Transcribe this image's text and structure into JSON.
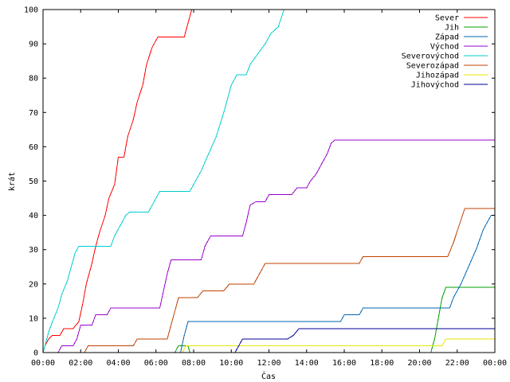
{
  "chart_data": {
    "type": "line",
    "xlabel": "Čas",
    "ylabel": "krát",
    "xlim": [
      0,
      24
    ],
    "ylim": [
      0,
      100
    ],
    "x_ticks": [
      {
        "v": 0,
        "label": "00:00"
      },
      {
        "v": 2,
        "label": "02:00"
      },
      {
        "v": 4,
        "label": "04:00"
      },
      {
        "v": 6,
        "label": "06:00"
      },
      {
        "v": 8,
        "label": "08:00"
      },
      {
        "v": 10,
        "label": "10:00"
      },
      {
        "v": 12,
        "label": "12:00"
      },
      {
        "v": 14,
        "label": "14:00"
      },
      {
        "v": 16,
        "label": "16:00"
      },
      {
        "v": 18,
        "label": "18:00"
      },
      {
        "v": 20,
        "label": "20:00"
      },
      {
        "v": 22,
        "label": "22:00"
      },
      {
        "v": 24,
        "label": "00:00"
      }
    ],
    "y_ticks": [
      0,
      10,
      20,
      30,
      40,
      50,
      60,
      70,
      80,
      90,
      100
    ],
    "grid": false,
    "legend_position": "top-right",
    "series": [
      {
        "name": "Sever",
        "color": "#ff0000",
        "points": [
          [
            0,
            0
          ],
          [
            0.1,
            2
          ],
          [
            0.3,
            4
          ],
          [
            0.5,
            5
          ],
          [
            0.9,
            5
          ],
          [
            1.1,
            7
          ],
          [
            1.6,
            7
          ],
          [
            1.9,
            9
          ],
          [
            2.1,
            14
          ],
          [
            2.3,
            20
          ],
          [
            2.6,
            26
          ],
          [
            2.8,
            31
          ],
          [
            3.0,
            35
          ],
          [
            3.3,
            40
          ],
          [
            3.5,
            45
          ],
          [
            3.8,
            49
          ],
          [
            4.0,
            57
          ],
          [
            4.3,
            57
          ],
          [
            4.5,
            63
          ],
          [
            4.8,
            68
          ],
          [
            5.0,
            73
          ],
          [
            5.3,
            78
          ],
          [
            5.5,
            84
          ],
          [
            5.8,
            89
          ],
          [
            6.1,
            92
          ],
          [
            7.5,
            92
          ],
          [
            7.7,
            96
          ],
          [
            7.9,
            100
          ]
        ]
      },
      {
        "name": "Jih",
        "color": "#00a000",
        "points": [
          [
            7.0,
            0
          ],
          [
            7.1,
            1
          ],
          [
            7.2,
            2
          ],
          [
            7.7,
            2
          ],
          [
            7.8,
            0
          ],
          [
            20.6,
            0
          ],
          [
            20.8,
            4
          ],
          [
            21.0,
            10
          ],
          [
            21.2,
            16
          ],
          [
            21.4,
            19
          ],
          [
            24,
            19
          ]
        ]
      },
      {
        "name": "Západ",
        "color": "#0066b3",
        "points": [
          [
            7.3,
            0
          ],
          [
            7.5,
            5
          ],
          [
            7.7,
            9
          ],
          [
            15.8,
            9
          ],
          [
            16.0,
            11
          ],
          [
            16.8,
            11
          ],
          [
            17.0,
            13
          ],
          [
            21.6,
            13
          ],
          [
            21.8,
            16
          ],
          [
            22.2,
            20
          ],
          [
            22.6,
            25
          ],
          [
            23.0,
            30
          ],
          [
            23.4,
            36
          ],
          [
            23.8,
            40
          ],
          [
            24,
            40
          ]
        ]
      },
      {
        "name": "Východ",
        "color": "#9900cc",
        "points": [
          [
            0.8,
            0
          ],
          [
            1.0,
            2
          ],
          [
            1.6,
            2
          ],
          [
            1.8,
            4
          ],
          [
            2.0,
            8
          ],
          [
            2.6,
            8
          ],
          [
            2.8,
            11
          ],
          [
            3.4,
            11
          ],
          [
            3.6,
            13
          ],
          [
            6.2,
            13
          ],
          [
            6.4,
            18
          ],
          [
            6.6,
            23
          ],
          [
            6.8,
            27
          ],
          [
            8.4,
            27
          ],
          [
            8.6,
            31
          ],
          [
            8.9,
            34
          ],
          [
            10.6,
            34
          ],
          [
            10.8,
            38
          ],
          [
            11.0,
            43
          ],
          [
            11.3,
            44
          ],
          [
            11.8,
            44
          ],
          [
            12.0,
            46
          ],
          [
            13.2,
            46
          ],
          [
            13.5,
            48
          ],
          [
            14.0,
            48
          ],
          [
            14.2,
            50
          ],
          [
            14.5,
            52
          ],
          [
            14.8,
            55
          ],
          [
            15.1,
            58
          ],
          [
            15.3,
            61
          ],
          [
            15.5,
            62
          ],
          [
            24,
            62
          ]
        ]
      },
      {
        "name": "Severovýchod",
        "color": "#00cccc",
        "points": [
          [
            0,
            0
          ],
          [
            0.1,
            2
          ],
          [
            0.3,
            6
          ],
          [
            0.5,
            9
          ],
          [
            0.8,
            13
          ],
          [
            1.0,
            17
          ],
          [
            1.3,
            21
          ],
          [
            1.5,
            25
          ],
          [
            1.7,
            29
          ],
          [
            1.9,
            31
          ],
          [
            3.6,
            31
          ],
          [
            3.8,
            34
          ],
          [
            4.1,
            37
          ],
          [
            4.4,
            40
          ],
          [
            4.6,
            41
          ],
          [
            5.6,
            41
          ],
          [
            5.9,
            44
          ],
          [
            6.2,
            47
          ],
          [
            7.8,
            47
          ],
          [
            8.0,
            49
          ],
          [
            8.4,
            53
          ],
          [
            8.8,
            58
          ],
          [
            9.2,
            63
          ],
          [
            9.6,
            70
          ],
          [
            10.0,
            78
          ],
          [
            10.3,
            81
          ],
          [
            10.8,
            81
          ],
          [
            11.0,
            84
          ],
          [
            11.4,
            87
          ],
          [
            11.8,
            90
          ],
          [
            12.1,
            93
          ],
          [
            12.5,
            95
          ],
          [
            12.8,
            100
          ]
        ]
      },
      {
        "name": "Severozápad",
        "color": "#c04000",
        "points": [
          [
            2.2,
            0
          ],
          [
            2.4,
            2
          ],
          [
            4.8,
            2
          ],
          [
            5.0,
            4
          ],
          [
            6.6,
            4
          ],
          [
            6.9,
            10
          ],
          [
            7.2,
            16
          ],
          [
            8.2,
            16
          ],
          [
            8.5,
            18
          ],
          [
            9.6,
            18
          ],
          [
            9.9,
            20
          ],
          [
            11.2,
            20
          ],
          [
            11.5,
            23
          ],
          [
            11.8,
            26
          ],
          [
            16.8,
            26
          ],
          [
            17.0,
            28
          ],
          [
            21.5,
            28
          ],
          [
            21.8,
            32
          ],
          [
            22.1,
            37
          ],
          [
            22.4,
            42
          ],
          [
            24,
            42
          ]
        ]
      },
      {
        "name": "Jihozápad",
        "color": "#e6e600",
        "points": [
          [
            7.4,
            0
          ],
          [
            7.6,
            2
          ],
          [
            21.2,
            2
          ],
          [
            21.4,
            4
          ],
          [
            24,
            4
          ]
        ]
      },
      {
        "name": "Jihovýchod",
        "color": "#000099",
        "points": [
          [
            10.2,
            0
          ],
          [
            10.4,
            2
          ],
          [
            10.6,
            4
          ],
          [
            13.0,
            4
          ],
          [
            13.3,
            5
          ],
          [
            13.6,
            7
          ],
          [
            24,
            7
          ]
        ]
      }
    ]
  }
}
